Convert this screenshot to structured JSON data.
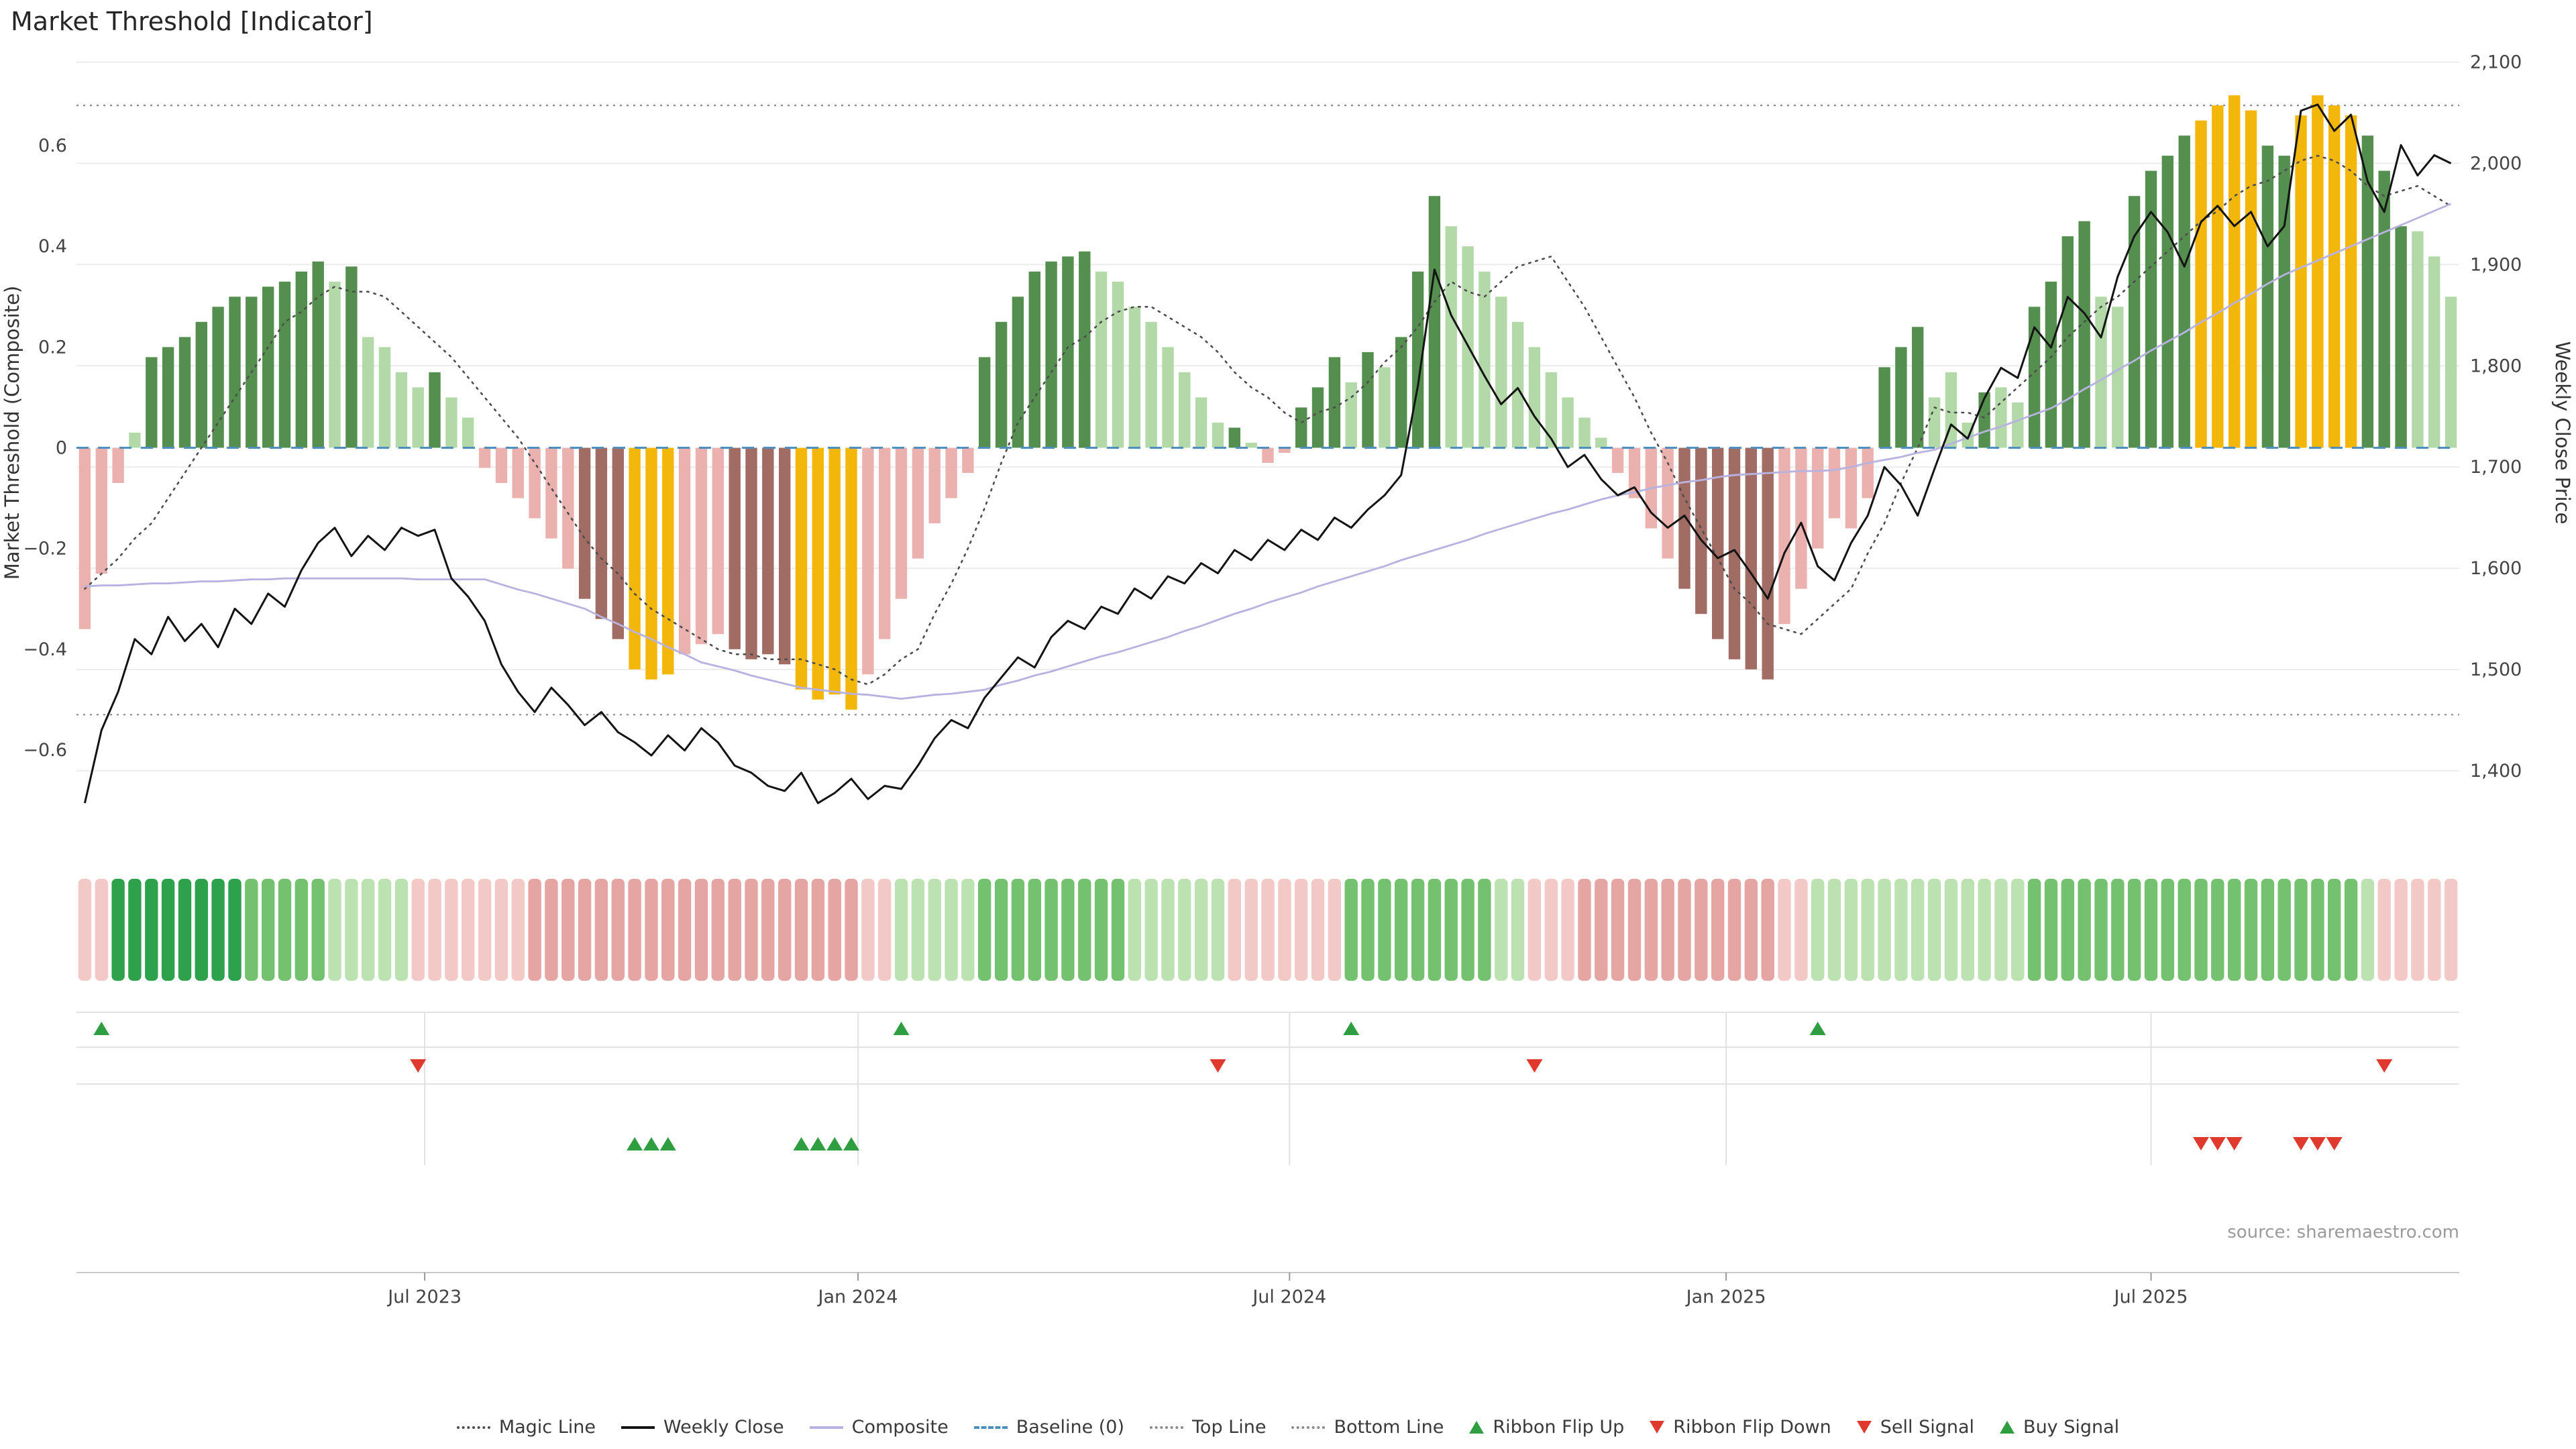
{
  "title": "Market Threshold [Indicator]",
  "source": "source: sharemaestro.com",
  "colors": {
    "bar": {
      "g": "#558f4f",
      "lg": "#b3d9a8",
      "n": "#eab1ae",
      "dn": "#a06c64",
      "y": "#f3b70c"
    },
    "ribbon": {
      "dg": "#2ea14c",
      "g": "#74c170",
      "lg": "#bce2b2",
      "lp": "#f2c9c6",
      "p": "#e5a5a2"
    },
    "weekly_close": "#141414",
    "composite": "#b8b2e0",
    "magic": "#4d4d4d",
    "baseline": "#4e8fc0",
    "top_bottom": "#8a8a8a",
    "grid": "#ececec",
    "signal_up": "#2f9e41",
    "signal_down": "#e03a2f"
  },
  "legend": [
    {
      "label": "Magic Line",
      "swatch": "dotted",
      "color": "#4d4d4d"
    },
    {
      "label": "Weekly Close",
      "swatch": "solid",
      "color": "#141414"
    },
    {
      "label": "Composite",
      "swatch": "solid",
      "color": "#b8b2e0"
    },
    {
      "label": "Baseline (0)",
      "swatch": "dashed",
      "color": "#4e8fc0"
    },
    {
      "label": "Top Line",
      "swatch": "dotted",
      "color": "#8a8a8a"
    },
    {
      "label": "Bottom Line",
      "swatch": "dotted",
      "color": "#8a8a8a"
    },
    {
      "label": "Ribbon Flip Up",
      "swatch": "tri-up",
      "color": "#2f9e41"
    },
    {
      "label": "Ribbon Flip Down",
      "swatch": "tri-down",
      "color": "#e03a2f"
    },
    {
      "label": "Sell Signal",
      "swatch": "tri-down",
      "color": "#e03a2f"
    },
    {
      "label": "Buy Signal",
      "swatch": "tri-up",
      "color": "#2f9e41"
    }
  ],
  "chart_data": {
    "type": "bar+line",
    "title": "Market Threshold [Indicator]",
    "x_axis": {
      "unit": "week",
      "n_weeks": 143,
      "tick_labels": [
        "Jul 2023",
        "Jan 2024",
        "Jul 2024",
        "Jan 2025",
        "Jul 2025"
      ],
      "tick_weeks": [
        20.4,
        46.4,
        72.3,
        98.5,
        124.0
      ]
    },
    "left_axis": {
      "label": "Market Threshold (Composite)",
      "range": [
        -0.78,
        0.78
      ],
      "ticks": [
        0.6,
        0.4,
        0.2,
        0,
        -0.2,
        -0.4,
        -0.6
      ]
    },
    "right_axis": {
      "label": "Weekly Close Price",
      "range": [
        1331,
        2107
      ],
      "ticks": [
        2100,
        2000,
        1900,
        1800,
        1700,
        1600,
        1500,
        1400
      ]
    },
    "top_line": 0.68,
    "bottom_line": -0.53,
    "baseline": 0,
    "threshold_bars": {
      "values": [
        -0.36,
        -0.25,
        -0.07,
        0.03,
        0.18,
        0.2,
        0.22,
        0.25,
        0.28,
        0.3,
        0.3,
        0.32,
        0.33,
        0.35,
        0.37,
        0.33,
        0.36,
        0.22,
        0.2,
        0.15,
        0.12,
        0.15,
        0.1,
        0.06,
        -0.04,
        -0.07,
        -0.1,
        -0.14,
        -0.18,
        -0.24,
        -0.3,
        -0.34,
        -0.38,
        -0.44,
        -0.46,
        -0.45,
        -0.41,
        -0.39,
        -0.37,
        -0.4,
        -0.42,
        -0.41,
        -0.43,
        -0.48,
        -0.5,
        -0.49,
        -0.52,
        -0.45,
        -0.38,
        -0.3,
        -0.22,
        -0.15,
        -0.1,
        -0.05,
        0.18,
        0.25,
        0.3,
        0.35,
        0.37,
        0.38,
        0.39,
        0.35,
        0.33,
        0.28,
        0.25,
        0.2,
        0.15,
        0.1,
        0.05,
        0.04,
        0.01,
        -0.03,
        -0.01,
        0.08,
        0.12,
        0.18,
        0.13,
        0.19,
        0.16,
        0.22,
        0.35,
        0.5,
        0.44,
        0.4,
        0.35,
        0.3,
        0.25,
        0.2,
        0.15,
        0.1,
        0.06,
        0.02,
        -0.05,
        -0.1,
        -0.16,
        -0.22,
        -0.28,
        -0.33,
        -0.38,
        -0.42,
        -0.44,
        -0.46,
        -0.35,
        -0.28,
        -0.2,
        -0.14,
        -0.16,
        -0.1,
        0.16,
        0.2,
        0.24,
        0.1,
        0.15,
        0.05,
        0.11,
        0.12,
        0.09,
        0.28,
        0.33,
        0.42,
        0.45,
        0.3,
        0.28,
        0.5,
        0.55,
        0.58,
        0.62,
        0.65,
        0.68,
        0.7,
        0.67,
        0.6,
        0.58,
        0.66,
        0.7,
        0.68,
        0.66,
        0.62,
        0.55,
        0.44,
        0.43,
        0.38,
        0.3
      ],
      "colors": [
        "n",
        "n",
        "n",
        "lg",
        "g",
        "g",
        "g",
        "g",
        "g",
        "g",
        "g",
        "g",
        "g",
        "g",
        "g",
        "lg",
        "g",
        "lg",
        "lg",
        "lg",
        "lg",
        "g",
        "lg",
        "lg",
        "n",
        "n",
        "n",
        "n",
        "n",
        "n",
        "dn",
        "dn",
        "dn",
        "y",
        "y",
        "y",
        "n",
        "n",
        "n",
        "dn",
        "dn",
        "dn",
        "dn",
        "y",
        "y",
        "y",
        "y",
        "n",
        "n",
        "n",
        "n",
        "n",
        "n",
        "n",
        "g",
        "g",
        "g",
        "g",
        "g",
        "g",
        "g",
        "lg",
        "lg",
        "lg",
        "lg",
        "lg",
        "lg",
        "lg",
        "lg",
        "g",
        "lg",
        "n",
        "n",
        "g",
        "g",
        "g",
        "lg",
        "g",
        "lg",
        "g",
        "g",
        "g",
        "lg",
        "lg",
        "lg",
        "lg",
        "lg",
        "lg",
        "lg",
        "lg",
        "lg",
        "lg",
        "n",
        "n",
        "n",
        "n",
        "dn",
        "dn",
        "dn",
        "dn",
        "dn",
        "dn",
        "n",
        "n",
        "n",
        "n",
        "n",
        "n",
        "g",
        "g",
        "g",
        "lg",
        "lg",
        "lg",
        "g",
        "lg",
        "lg",
        "g",
        "g",
        "g",
        "g",
        "lg",
        "lg",
        "g",
        "g",
        "g",
        "g",
        "y",
        "y",
        "y",
        "y",
        "g",
        "g",
        "y",
        "y",
        "y",
        "y",
        "g",
        "g",
        "g",
        "lg",
        "lg",
        "lg"
      ]
    },
    "weekly_close": [
      1368,
      1440,
      1478,
      1530,
      1515,
      1552,
      1528,
      1545,
      1522,
      1560,
      1545,
      1575,
      1562,
      1598,
      1625,
      1640,
      1612,
      1632,
      1618,
      1640,
      1632,
      1638,
      1590,
      1572,
      1548,
      1505,
      1478,
      1458,
      1482,
      1465,
      1445,
      1458,
      1438,
      1428,
      1415,
      1435,
      1420,
      1442,
      1428,
      1405,
      1398,
      1385,
      1380,
      1398,
      1368,
      1378,
      1392,
      1372,
      1385,
      1382,
      1405,
      1432,
      1450,
      1442,
      1472,
      1492,
      1512,
      1502,
      1532,
      1548,
      1540,
      1562,
      1555,
      1580,
      1570,
      1592,
      1585,
      1605,
      1595,
      1618,
      1608,
      1628,
      1618,
      1638,
      1628,
      1650,
      1640,
      1658,
      1672,
      1692,
      1780,
      1895,
      1850,
      1820,
      1790,
      1762,
      1778,
      1750,
      1728,
      1700,
      1712,
      1688,
      1672,
      1680,
      1655,
      1640,
      1652,
      1628,
      1610,
      1618,
      1595,
      1570,
      1615,
      1645,
      1602,
      1588,
      1625,
      1652,
      1700,
      1682,
      1652,
      1698,
      1742,
      1728,
      1768,
      1798,
      1788,
      1838,
      1818,
      1868,
      1852,
      1828,
      1888,
      1928,
      1952,
      1932,
      1898,
      1942,
      1958,
      1938,
      1952,
      1918,
      1938,
      2052,
      2058,
      2032,
      2048,
      1982,
      1952,
      2018,
      1988,
      2008,
      2000
    ],
    "composite": [
      1582,
      1583,
      1583,
      1584,
      1585,
      1585,
      1586,
      1587,
      1587,
      1588,
      1589,
      1589,
      1590,
      1590,
      1590,
      1590,
      1590,
      1590,
      1590,
      1590,
      1589,
      1589,
      1589,
      1589,
      1589,
      1584,
      1579,
      1575,
      1570,
      1565,
      1560,
      1552,
      1545,
      1537,
      1530,
      1522,
      1515,
      1507,
      1503,
      1499,
      1494,
      1490,
      1486,
      1482,
      1480,
      1478,
      1476,
      1475,
      1473,
      1471,
      1473,
      1475,
      1476,
      1478,
      1480,
      1485,
      1489,
      1494,
      1498,
      1503,
      1508,
      1513,
      1517,
      1522,
      1527,
      1532,
      1538,
      1543,
      1549,
      1555,
      1560,
      1566,
      1571,
      1576,
      1582,
      1587,
      1592,
      1597,
      1602,
      1608,
      1613,
      1618,
      1623,
      1628,
      1634,
      1639,
      1644,
      1649,
      1654,
      1658,
      1663,
      1668,
      1672,
      1675,
      1679,
      1682,
      1685,
      1687,
      1690,
      1692,
      1693,
      1694,
      1695,
      1696,
      1696,
      1697,
      1700,
      1704,
      1707,
      1710,
      1714,
      1717,
      1723,
      1729,
      1735,
      1740,
      1746,
      1752,
      1758,
      1767,
      1777,
      1786,
      1796,
      1805,
      1815,
      1824,
      1833,
      1843,
      1852,
      1862,
      1871,
      1881,
      1890,
      1897,
      1904,
      1911,
      1918,
      1925,
      1932,
      1939,
      1946,
      1953,
      1960
    ],
    "magic_line": [
      -0.28,
      -0.25,
      -0.22,
      -0.18,
      -0.15,
      -0.1,
      -0.05,
      0,
      0.05,
      0.1,
      0.15,
      0.2,
      0.25,
      0.27,
      0.3,
      0.32,
      0.31,
      0.31,
      0.3,
      0.27,
      0.24,
      0.21,
      0.18,
      0.14,
      0.1,
      0.06,
      0.02,
      -0.03,
      -0.08,
      -0.13,
      -0.18,
      -0.22,
      -0.25,
      -0.29,
      -0.32,
      -0.34,
      -0.36,
      -0.38,
      -0.4,
      -0.41,
      -0.41,
      -0.42,
      -0.42,
      -0.42,
      -0.43,
      -0.44,
      -0.46,
      -0.47,
      -0.45,
      -0.42,
      -0.4,
      -0.33,
      -0.27,
      -0.2,
      -0.12,
      -0.03,
      0.05,
      0.1,
      0.15,
      0.2,
      0.22,
      0.25,
      0.27,
      0.28,
      0.28,
      0.26,
      0.24,
      0.22,
      0.19,
      0.15,
      0.12,
      0.1,
      0.07,
      0.05,
      0.07,
      0.08,
      0.1,
      0.13,
      0.17,
      0.2,
      0.24,
      0.29,
      0.33,
      0.31,
      0.3,
      0.33,
      0.36,
      0.37,
      0.38,
      0.33,
      0.28,
      0.22,
      0.16,
      0.1,
      0.03,
      -0.03,
      -0.1,
      -0.16,
      -0.22,
      -0.28,
      -0.31,
      -0.35,
      -0.36,
      -0.37,
      -0.34,
      -0.31,
      -0.28,
      -0.21,
      -0.15,
      -0.07,
      0,
      0.08,
      0.07,
      0.07,
      0.06,
      0.09,
      0.12,
      0.15,
      0.18,
      0.22,
      0.25,
      0.28,
      0.3,
      0.33,
      0.36,
      0.39,
      0.42,
      0.45,
      0.47,
      0.5,
      0.52,
      0.53,
      0.55,
      0.57,
      0.58,
      0.57,
      0.55,
      0.52,
      0.5,
      0.51,
      0.52,
      0.5,
      0.48
    ],
    "ribbon": [
      "lp",
      "lp",
      "dg",
      "dg",
      "dg",
      "dg",
      "dg",
      "dg",
      "dg",
      "dg",
      "g",
      "g",
      "g",
      "g",
      "g",
      "lg",
      "lg",
      "lg",
      "lg",
      "lg",
      "lp",
      "lp",
      "lp",
      "lp",
      "lp",
      "lp",
      "lp",
      "p",
      "p",
      "p",
      "p",
      "p",
      "p",
      "p",
      "p",
      "p",
      "p",
      "p",
      "p",
      "p",
      "p",
      "p",
      "p",
      "p",
      "p",
      "p",
      "p",
      "lp",
      "lp",
      "lg",
      "lg",
      "lg",
      "lg",
      "lg",
      "g",
      "g",
      "g",
      "g",
      "g",
      "g",
      "g",
      "g",
      "g",
      "lg",
      "lg",
      "lg",
      "lg",
      "lg",
      "lg",
      "lp",
      "lp",
      "lp",
      "lp",
      "lp",
      "lp",
      "lp",
      "g",
      "g",
      "g",
      "g",
      "g",
      "g",
      "g",
      "g",
      "g",
      "lg",
      "lg",
      "lp",
      "lp",
      "lp",
      "p",
      "p",
      "p",
      "p",
      "p",
      "p",
      "p",
      "p",
      "p",
      "p",
      "p",
      "p",
      "lp",
      "lp",
      "lg",
      "lg",
      "lg",
      "lg",
      "lg",
      "lg",
      "lg",
      "lg",
      "lg",
      "lg",
      "lg",
      "lg",
      "lg",
      "g",
      "g",
      "g",
      "g",
      "g",
      "g",
      "g",
      "g",
      "g",
      "g",
      "g",
      "g",
      "g",
      "g",
      "g",
      "g",
      "g",
      "g",
      "g",
      "g",
      "lg",
      "lp",
      "lp",
      "lp",
      "lp",
      "lp"
    ],
    "signals": {
      "ribbon_flip_up_weeks": [
        1,
        49,
        76,
        104
      ],
      "ribbon_flip_down_weeks": [
        20,
        68,
        87,
        138
      ],
      "buy_signal_weeks": [
        33,
        34,
        35,
        43,
        44,
        45,
        46
      ],
      "sell_signal_weeks": [
        127,
        128,
        129,
        133,
        134,
        135
      ]
    }
  }
}
